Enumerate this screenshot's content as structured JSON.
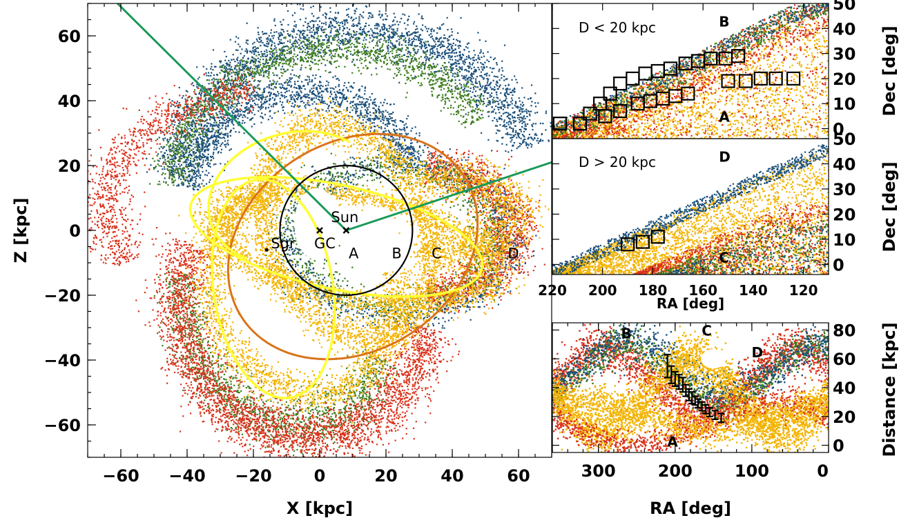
{
  "colors": {
    "blue": "#1a4f7a",
    "green": "#3f7e1f",
    "red": "#d9311a",
    "orange": "#f2b300",
    "yellow": "#ffff33",
    "darkorange": "#d9731a",
    "line_green": "#1a9a5a",
    "black": "#000000"
  },
  "chart_data": [
    {
      "type": "scatter",
      "id": "main",
      "xlabel": "X [kpc]",
      "ylabel": "Z [kpc]",
      "xlim": [
        -70,
        70
      ],
      "ylim": [
        -70,
        70
      ],
      "xticks": [
        -60,
        -40,
        -20,
        0,
        20,
        40,
        60
      ],
      "yticks": [
        -60,
        -40,
        -20,
        0,
        20,
        40,
        60
      ],
      "xtick_labels": [
        "−60",
        "−40",
        "−20",
        "0",
        "20",
        "40",
        "60"
      ],
      "ytick_labels": [
        "−60",
        "−40",
        "−20",
        "0",
        "20",
        "40",
        "60"
      ],
      "markers": [
        {
          "label": "Sun",
          "x": 8,
          "y": 0,
          "symbol": "x"
        },
        {
          "label": "GC",
          "x": 0,
          "y": 0,
          "symbol": "x"
        },
        {
          "label": "Sgr",
          "x": -16,
          "y": -6,
          "symbol": "dot"
        }
      ],
      "region_labels": [
        {
          "label": "A",
          "x": 10,
          "y": -9
        },
        {
          "label": "B",
          "x": 23,
          "y": -9
        },
        {
          "label": "C",
          "x": 35,
          "y": -9
        },
        {
          "label": "D",
          "x": 58,
          "y": -9
        }
      ],
      "circle": {
        "center": [
          8,
          0
        ],
        "radius": 20
      },
      "green_line": [
        [
          -61,
          70
        ],
        [
          8,
          0
        ],
        [
          70,
          21
        ]
      ]
    },
    {
      "type": "scatter",
      "id": "upper",
      "title": "D < 20 kpc",
      "ylabel": "Dec [deg]",
      "xlim": [
        220,
        110
      ],
      "ylim": [
        -4,
        50
      ],
      "yticks": [
        0,
        10,
        20,
        30,
        40,
        50
      ],
      "ytick_labels": [
        "0",
        "10",
        "20",
        "30",
        "40",
        "50"
      ],
      "region_labels": [
        {
          "label": "B",
          "x": 152,
          "y": 43
        },
        {
          "label": "A",
          "x": 152,
          "y": 5
        }
      ],
      "boxes": [
        {
          "ra": 217,
          "dec": 2
        },
        {
          "ra": 209,
          "dec": 2
        },
        {
          "ra": 205,
          "dec": 6
        },
        {
          "ra": 201,
          "dec": 10
        },
        {
          "ra": 197,
          "dec": 14
        },
        {
          "ra": 193,
          "dec": 18
        },
        {
          "ra": 188,
          "dec": 20
        },
        {
          "ra": 183,
          "dec": 22
        },
        {
          "ra": 178,
          "dec": 23
        },
        {
          "ra": 173,
          "dec": 24
        },
        {
          "ra": 167,
          "dec": 26
        },
        {
          "ra": 162,
          "dec": 27
        },
        {
          "ra": 157,
          "dec": 28
        },
        {
          "ra": 151,
          "dec": 28
        },
        {
          "ra": 146,
          "dec": 29
        },
        {
          "ra": 199,
          "dec": 5
        },
        {
          "ra": 193,
          "dec": 7
        },
        {
          "ra": 186,
          "dec": 10
        },
        {
          "ra": 181,
          "dec": 11
        },
        {
          "ra": 176,
          "dec": 12
        },
        {
          "ra": 171,
          "dec": 13
        },
        {
          "ra": 166,
          "dec": 14
        },
        {
          "ra": 150,
          "dec": 19
        },
        {
          "ra": 143,
          "dec": 19
        },
        {
          "ra": 137,
          "dec": 20
        },
        {
          "ra": 131,
          "dec": 20
        },
        {
          "ra": 124,
          "dec": 20
        }
      ]
    },
    {
      "type": "scatter",
      "id": "middle",
      "title": "D > 20 kpc",
      "xlabel": "RA [deg]",
      "ylabel": "Dec [deg]",
      "xlim": [
        220,
        110
      ],
      "ylim": [
        -4,
        50
      ],
      "xticks": [
        220,
        200,
        180,
        160,
        140,
        120
      ],
      "xtick_labels": [
        "220",
        "200",
        "180",
        "160",
        "140",
        "120"
      ],
      "yticks": [
        0,
        10,
        20,
        30,
        40,
        50
      ],
      "ytick_labels": [
        "0",
        "10",
        "20",
        "30",
        "40",
        "50"
      ],
      "region_labels": [
        {
          "label": "D",
          "x": 152,
          "y": 43
        },
        {
          "label": "C",
          "x": 152,
          "y": 3
        }
      ],
      "boxes": [
        {
          "ra": 190,
          "dec": 8
        },
        {
          "ra": 184,
          "dec": 9
        },
        {
          "ra": 178,
          "dec": 11
        }
      ]
    },
    {
      "type": "scatter",
      "id": "bottom",
      "xlabel": "RA [deg]",
      "ylabel": "Distance [kpc]",
      "xlim": [
        360,
        0
      ],
      "ylim": [
        -5,
        85
      ],
      "xticks": [
        300,
        200,
        100,
        0
      ],
      "xtick_labels": [
        "300",
        "200",
        "100",
        "0"
      ],
      "yticks": [
        0,
        20,
        40,
        60,
        80
      ],
      "ytick_labels": [
        "0",
        "20",
        "40",
        "60",
        "80"
      ],
      "region_labels": [
        {
          "label": "B",
          "x": 265,
          "y": 78
        },
        {
          "label": "C",
          "x": 160,
          "y": 80
        },
        {
          "label": "D",
          "x": 95,
          "y": 65
        },
        {
          "label": "A",
          "x": 205,
          "y": 3
        }
      ],
      "errorbars": [
        {
          "ra": 210,
          "d": 55,
          "err": 8
        },
        {
          "ra": 205,
          "d": 49,
          "err": 6
        },
        {
          "ra": 200,
          "d": 46,
          "err": 5
        },
        {
          "ra": 195,
          "d": 44,
          "err": 5
        },
        {
          "ra": 190,
          "d": 42,
          "err": 5
        },
        {
          "ra": 186,
          "d": 38,
          "err": 4
        },
        {
          "ra": 182,
          "d": 35,
          "err": 4
        },
        {
          "ra": 178,
          "d": 33,
          "err": 4
        },
        {
          "ra": 174,
          "d": 31,
          "err": 3
        },
        {
          "ra": 170,
          "d": 29,
          "err": 3
        },
        {
          "ra": 165,
          "d": 27,
          "err": 3
        },
        {
          "ra": 160,
          "d": 25,
          "err": 3
        },
        {
          "ra": 155,
          "d": 23,
          "err": 3
        },
        {
          "ra": 148,
          "d": 21,
          "err": 3
        },
        {
          "ra": 140,
          "d": 19,
          "err": 3
        }
      ]
    }
  ]
}
